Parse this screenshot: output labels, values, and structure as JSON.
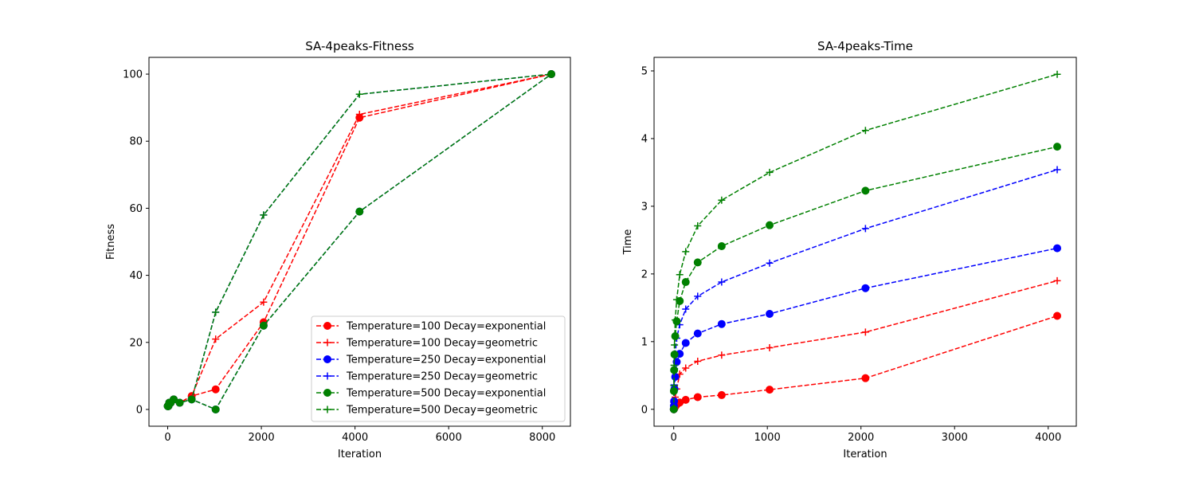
{
  "chart_data": [
    {
      "type": "line",
      "title": "SA-4peaks-Fitness",
      "xlabel": "Iteration",
      "ylabel": "Fitness",
      "xlim": [
        -400,
        8600
      ],
      "ylim": [
        -5,
        105
      ],
      "xticks": [
        0,
        2000,
        4000,
        6000,
        8000
      ],
      "yticks": [
        0,
        20,
        40,
        60,
        80,
        100
      ],
      "grid": false,
      "legend_position": "lower right",
      "series": [
        {
          "name": "Temperature=100 Decay=exponential",
          "color": "#ff0000",
          "marker": "circle",
          "x": [
            1,
            2,
            4,
            8,
            16,
            32,
            64,
            128,
            256,
            512,
            1024,
            2048,
            4096,
            8192
          ],
          "y": [
            1,
            1,
            1,
            1,
            1,
            2,
            2,
            3,
            2,
            4,
            6,
            26,
            87,
            100
          ]
        },
        {
          "name": "Temperature=100 Decay=geometric",
          "color": "#ff0000",
          "marker": "plus",
          "x": [
            1,
            2,
            4,
            8,
            16,
            32,
            64,
            128,
            256,
            512,
            1024,
            2048,
            4096,
            8192
          ],
          "y": [
            1,
            1,
            1,
            1,
            1,
            2,
            2,
            3,
            2,
            4,
            21,
            32,
            88,
            100
          ]
        },
        {
          "name": "Temperature=250 Decay=exponential",
          "color": "#0000ff",
          "marker": "circle",
          "x": [
            1,
            2,
            4,
            8,
            16,
            32,
            64,
            128,
            256,
            512,
            1024,
            2048,
            4096,
            8192
          ],
          "y": [
            1,
            1,
            1,
            1,
            1,
            2,
            2,
            3,
            2,
            3,
            0,
            25,
            59,
            100
          ]
        },
        {
          "name": "Temperature=250 Decay=geometric",
          "color": "#0000ff",
          "marker": "plus",
          "x": [
            1,
            2,
            4,
            8,
            16,
            32,
            64,
            128,
            256,
            512,
            1024,
            2048,
            4096,
            8192
          ],
          "y": [
            1,
            1,
            1,
            1,
            1,
            2,
            2,
            3,
            2,
            3,
            29,
            58,
            94,
            100
          ]
        },
        {
          "name": "Temperature=500 Decay=exponential",
          "color": "#008000",
          "marker": "circle",
          "x": [
            1,
            2,
            4,
            8,
            16,
            32,
            64,
            128,
            256,
            512,
            1024,
            2048,
            4096,
            8192
          ],
          "y": [
            1,
            1,
            1,
            1,
            1,
            2,
            2,
            3,
            2,
            3,
            0,
            25,
            59,
            100
          ]
        },
        {
          "name": "Temperature=500 Decay=geometric",
          "color": "#008000",
          "marker": "plus",
          "x": [
            1,
            2,
            4,
            8,
            16,
            32,
            64,
            128,
            256,
            512,
            1024,
            2048,
            4096,
            8192
          ],
          "y": [
            1,
            1,
            1,
            1,
            1,
            2,
            2,
            3,
            2,
            3,
            29,
            58,
            94,
            100
          ]
        }
      ]
    },
    {
      "type": "line",
      "title": "SA-4peaks-Time",
      "xlabel": "Iteration",
      "ylabel": "Time",
      "xlim": [
        -210,
        4300
      ],
      "ylim": [
        -0.25,
        5.2
      ],
      "xticks": [
        0,
        1000,
        2000,
        3000,
        4000
      ],
      "yticks": [
        0,
        1,
        2,
        3,
        4,
        5
      ],
      "grid": false,
      "series": [
        {
          "name": "Temperature=100 Decay=exponential",
          "color": "#ff0000",
          "marker": "circle",
          "x": [
            1,
            2,
            4,
            8,
            16,
            32,
            64,
            128,
            256,
            512,
            1024,
            2048,
            4096
          ],
          "y": [
            0.0,
            0.0,
            0.01,
            0.02,
            0.04,
            0.07,
            0.1,
            0.14,
            0.18,
            0.21,
            0.29,
            0.46,
            1.38
          ]
        },
        {
          "name": "Temperature=100 Decay=geometric",
          "color": "#ff0000",
          "marker": "plus",
          "x": [
            1,
            2,
            4,
            8,
            16,
            32,
            64,
            128,
            256,
            512,
            1024,
            2048,
            4096
          ],
          "y": [
            0.0,
            0.02,
            0.05,
            0.1,
            0.18,
            0.3,
            0.52,
            0.61,
            0.71,
            0.8,
            0.91,
            1.14,
            1.9
          ]
        },
        {
          "name": "Temperature=250 Decay=exponential",
          "color": "#0000ff",
          "marker": "circle",
          "x": [
            1,
            2,
            4,
            8,
            16,
            32,
            64,
            128,
            256,
            512,
            1024,
            2048,
            4096
          ],
          "y": [
            0.0,
            0.05,
            0.12,
            0.3,
            0.48,
            0.7,
            0.82,
            0.98,
            1.12,
            1.26,
            1.41,
            1.79,
            2.38
          ]
        },
        {
          "name": "Temperature=250 Decay=geometric",
          "color": "#0000ff",
          "marker": "plus",
          "x": [
            1,
            2,
            4,
            8,
            16,
            32,
            64,
            128,
            256,
            512,
            1024,
            2048,
            4096
          ],
          "y": [
            0.0,
            0.1,
            0.36,
            0.6,
            0.8,
            1.05,
            1.25,
            1.48,
            1.67,
            1.88,
            2.16,
            2.67,
            3.54
          ]
        },
        {
          "name": "Temperature=500 Decay=exponential",
          "color": "#008000",
          "marker": "circle",
          "x": [
            1,
            2,
            4,
            8,
            16,
            32,
            64,
            128,
            256,
            512,
            1024,
            2048,
            4096
          ],
          "y": [
            0.0,
            0.27,
            0.58,
            0.81,
            1.08,
            1.3,
            1.6,
            1.88,
            2.17,
            2.41,
            2.72,
            3.23,
            3.88
          ]
        },
        {
          "name": "Temperature=500 Decay=geometric",
          "color": "#008000",
          "marker": "plus",
          "x": [
            1,
            2,
            4,
            8,
            16,
            32,
            64,
            128,
            256,
            512,
            1024,
            2048,
            4096
          ],
          "y": [
            0.0,
            0.35,
            0.65,
            0.95,
            1.32,
            1.62,
            1.99,
            2.33,
            2.71,
            3.09,
            3.5,
            4.12,
            4.95
          ]
        }
      ]
    }
  ]
}
